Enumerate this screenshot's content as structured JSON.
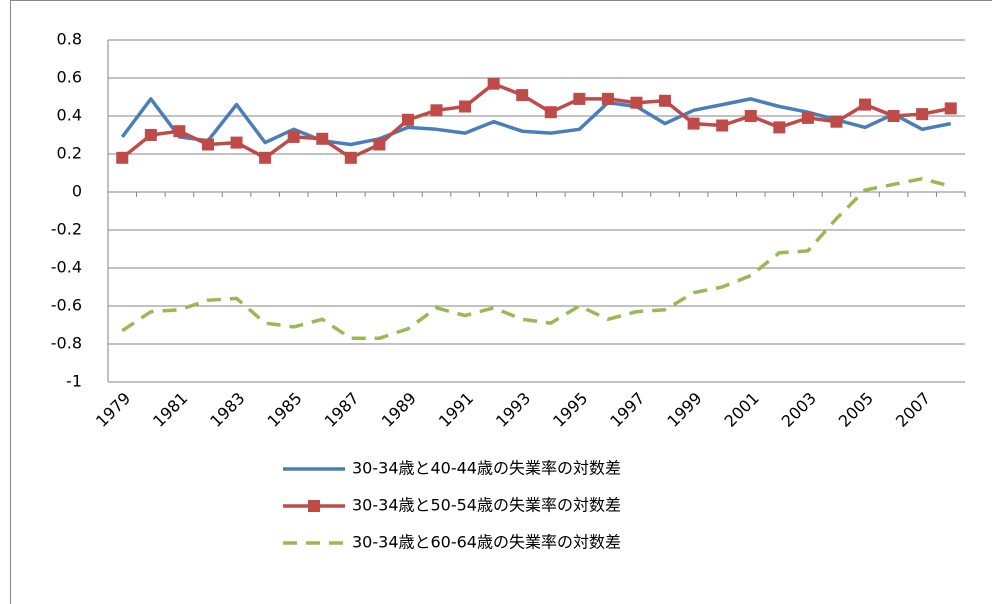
{
  "chart_data": {
    "type": "line",
    "categories": [
      "1979",
      null,
      "1981",
      null,
      "1983",
      null,
      "1985",
      null,
      "1987",
      null,
      "1989",
      null,
      "1991",
      null,
      "1993",
      null,
      "1995",
      null,
      "1997",
      null,
      "1999",
      null,
      "2001",
      null,
      "2003",
      null,
      "2005",
      null,
      "2007",
      null
    ],
    "series": [
      {
        "name": "30-34歳と40-44歳の失業率の対数差",
        "color": "#4a7ebb",
        "style": "solid",
        "marker": "none",
        "values": [
          0.29,
          0.49,
          0.29,
          0.27,
          0.46,
          0.26,
          0.33,
          0.27,
          0.25,
          0.28,
          0.34,
          0.33,
          0.31,
          0.37,
          0.32,
          0.31,
          0.33,
          0.47,
          0.45,
          0.36,
          0.43,
          0.46,
          0.49,
          0.45,
          0.42,
          0.38,
          0.34,
          0.41,
          0.33,
          0.36
        ]
      },
      {
        "name": "30-34歳と50-54歳の失業率の対数差",
        "color": "#be4b48",
        "style": "solid",
        "marker": "square",
        "values": [
          0.18,
          0.3,
          0.32,
          0.25,
          0.26,
          0.18,
          0.29,
          0.28,
          0.18,
          0.25,
          0.38,
          0.43,
          0.45,
          0.57,
          0.51,
          0.42,
          0.49,
          0.49,
          0.47,
          0.48,
          0.36,
          0.35,
          0.4,
          0.34,
          0.39,
          0.37,
          0.46,
          0.4,
          0.41,
          0.44
        ]
      },
      {
        "name": "30-34歳と60-64歳の失業率の対数差",
        "color": "#98b954",
        "style": "dashed",
        "marker": "none",
        "values": [
          -0.73,
          -0.63,
          -0.62,
          -0.57,
          -0.56,
          -0.69,
          -0.71,
          -0.67,
          -0.77,
          -0.77,
          -0.72,
          -0.61,
          -0.65,
          -0.61,
          -0.67,
          -0.69,
          -0.6,
          -0.67,
          -0.63,
          -0.62,
          -0.53,
          -0.5,
          -0.44,
          -0.32,
          -0.31,
          -0.14,
          0.01,
          0.04,
          0.07,
          0.03
        ]
      }
    ],
    "ylim": [
      -1,
      0.8
    ],
    "yticks": [
      -1,
      -0.8,
      -0.6,
      -0.4,
      -0.2,
      0,
      0.2,
      0.4,
      0.6,
      0.8
    ],
    "grid": true
  }
}
